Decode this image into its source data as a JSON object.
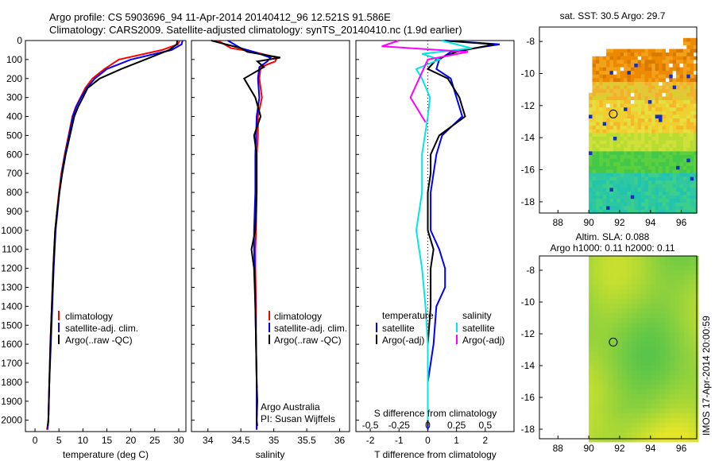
{
  "title": {
    "line1": "Argo profile: CS 5903696_94 11-Apr-2014 20140412_96 12.521S 91.586E",
    "line2": "Climatology: CARS2009. Satellite-adjusted climatology: synTS_20140410.nc (1.9d earlier)"
  },
  "colors": {
    "clim": "#ff0000",
    "sat": "#0000ff",
    "argo": "#000000",
    "sal_sat": "#00e5e5",
    "sal_argo": "#ff00ff"
  },
  "depth_ticks": [
    0,
    100,
    200,
    300,
    400,
    500,
    600,
    700,
    800,
    900,
    1000,
    1100,
    1200,
    1300,
    1400,
    1500,
    1600,
    1700,
    1800,
    1900,
    2000
  ],
  "panel_temp": {
    "xlabel": "temperature (deg C)",
    "xticks": [
      0,
      5,
      10,
      15,
      20,
      25,
      30
    ],
    "xlim": [
      -2,
      31.5
    ],
    "legend": [
      "climatology",
      "satellite-adj. clim.",
      "Argo(..raw -QC)"
    ]
  },
  "panel_sal": {
    "xlabel": "salinity",
    "xticks": [
      "34",
      "34.5",
      "35",
      "35.5",
      "36"
    ],
    "xlim": [
      33.75,
      36.15
    ],
    "legend": [
      "climatology",
      "satellite-adj. clim.",
      "Argo(..raw -QC)"
    ],
    "note1": "Argo Australia",
    "note2": "PI: Susan Wijffels"
  },
  "panel_diff": {
    "xlabel": "T difference from climatology",
    "xticks": [
      "-2",
      "-1",
      "0",
      "1",
      "2"
    ],
    "xlim": [
      -2.5,
      3.0
    ],
    "top_label": "S difference from climatology",
    "sticks": [
      "-0.5",
      "-0.25",
      "0",
      "0.25",
      "0.5"
    ],
    "legend_temp_title": "temperature",
    "legend_sal_title": "salinity",
    "legend_temp": [
      "satellite",
      "Argo(-adj)"
    ],
    "legend_sal": [
      "satellite",
      "Argo(-adj)"
    ]
  },
  "map_sst": {
    "title": "sat. SST: 30.5  Argo: 29.7",
    "xticks": [
      "88",
      "90",
      "92",
      "94",
      "96"
    ],
    "yticks": [
      "-8",
      "-10",
      "-12",
      "-14",
      "-16",
      "-18"
    ]
  },
  "map_sla": {
    "title1": "Altim. SLA: 0.088",
    "title2": "Argo h1000: 0.11  h2000: 0.11",
    "xticks": [
      "88",
      "90",
      "92",
      "94",
      "96"
    ],
    "yticks": [
      "-8",
      "-10",
      "-12",
      "-14",
      "-16",
      "-18"
    ]
  },
  "argo_position": {
    "lon": 91.586,
    "lat": -12.521
  },
  "side_label": "IMOS 17-Apr-2014 20:00:59",
  "chart_data": [
    {
      "type": "line",
      "ylabel": "",
      "xlabel": "temperature (deg C)",
      "ylim": [
        2060,
        0
      ],
      "series": [
        {
          "name": "climatology",
          "x": [
            30.2,
            29.8,
            26.5,
            17.5,
            14.5,
            12.0,
            10.5,
            9.5,
            8.5,
            7.8,
            7.0,
            6.2,
            5.5,
            5.0,
            4.6,
            4.2,
            3.8,
            3.5,
            3.2,
            3.0,
            2.8,
            2.5
          ],
          "y": [
            0,
            20,
            50,
            100,
            150,
            200,
            250,
            300,
            350,
            400,
            500,
            600,
            700,
            800,
            900,
            1000,
            1200,
            1400,
            1600,
            1800,
            2000,
            2050
          ]
        },
        {
          "name": "satellite-adj. clim.",
          "x": [
            30.8,
            30.6,
            28.5,
            20.0,
            15.0,
            12.5,
            10.8,
            9.6,
            8.6,
            7.9,
            7.1,
            6.3,
            5.6,
            5.1,
            4.7,
            4.3,
            3.9,
            3.6,
            3.3,
            3.0,
            2.8,
            2.6
          ],
          "y": [
            0,
            20,
            50,
            100,
            150,
            200,
            250,
            300,
            350,
            400,
            500,
            600,
            700,
            800,
            900,
            1000,
            1200,
            1400,
            1600,
            1800,
            2000,
            2050
          ]
        },
        {
          "name": "Argo(..raw -QC)",
          "x": [
            29.7,
            29.6,
            28.0,
            23.0,
            18.0,
            13.5,
            11.0,
            10.0,
            9.0,
            8.2,
            7.3,
            6.4,
            5.7,
            5.1,
            4.6,
            4.2,
            3.8,
            3.5,
            3.2,
            3.0,
            2.8,
            2.7
          ],
          "y": [
            0,
            20,
            50,
            100,
            150,
            200,
            250,
            300,
            350,
            400,
            500,
            600,
            700,
            800,
            900,
            1000,
            1200,
            1400,
            1600,
            1800,
            2000,
            2030
          ]
        }
      ]
    },
    {
      "type": "line",
      "xlabel": "salinity",
      "ylim": [
        2060,
        0
      ],
      "series": [
        {
          "name": "climatology",
          "x": [
            34.15,
            34.35,
            34.7,
            35.05,
            35.02,
            34.8,
            34.78,
            34.82,
            34.76,
            34.76,
            34.74,
            34.74,
            34.73,
            34.72,
            34.72,
            34.73,
            34.73,
            34.74,
            34.74,
            34.74,
            34.74
          ],
          "y": [
            0,
            40,
            60,
            90,
            110,
            140,
            200,
            300,
            400,
            500,
            600,
            800,
            1000,
            1100,
            1200,
            1400,
            1600,
            1800,
            1900,
            2000,
            2050
          ]
        },
        {
          "name": "satellite-adj. clim.",
          "x": [
            34.3,
            34.5,
            34.7,
            34.95,
            34.9,
            34.78,
            34.76,
            34.78,
            34.74,
            34.73,
            34.72,
            34.72,
            34.7,
            34.7,
            34.71,
            34.72,
            34.73,
            34.74,
            34.74,
            34.74,
            34.74
          ],
          "y": [
            0,
            40,
            60,
            90,
            110,
            140,
            200,
            300,
            400,
            500,
            600,
            800,
            1000,
            1100,
            1200,
            1400,
            1600,
            1800,
            1900,
            2000,
            2050
          ]
        },
        {
          "name": "Argo(..raw -QC)",
          "x": [
            34.05,
            34.5,
            34.6,
            35.1,
            34.75,
            34.85,
            34.55,
            34.72,
            34.8,
            34.7,
            34.74,
            34.74,
            34.72,
            34.66,
            34.7,
            34.72,
            34.73,
            34.74,
            34.75,
            34.74,
            34.75
          ],
          "y": [
            0,
            40,
            60,
            90,
            110,
            140,
            200,
            300,
            400,
            500,
            600,
            800,
            1000,
            1100,
            1200,
            1400,
            1600,
            1800,
            1900,
            2000,
            2030
          ]
        }
      ]
    },
    {
      "type": "line",
      "xlabel": "T difference from climatology",
      "x2label": "S difference from climatology",
      "ylim": [
        2060,
        0
      ],
      "series": [
        {
          "name": "temperature satellite",
          "x": [
            0.6,
            2.5,
            0.8,
            0.4,
            0.3,
            0.8,
            1.0,
            1.2,
            0.5,
            0.3,
            0.2,
            0.1,
            0.1,
            0.4,
            0.6,
            0.6,
            0.3,
            0.2,
            0.0,
            0.0,
            0.0
          ],
          "y": [
            0,
            20,
            60,
            100,
            150,
            200,
            300,
            400,
            500,
            600,
            700,
            800,
            1000,
            1100,
            1200,
            1300,
            1400,
            1600,
            1800,
            2000,
            2050
          ]
        },
        {
          "name": "temperature Argo(-adj)",
          "x": [
            0.5,
            2.3,
            1.0,
            0.3,
            0.0,
            0.7,
            1.1,
            1.3,
            0.4,
            0.1,
            0.1,
            0.0,
            0.0,
            0.2,
            0.1,
            0.1,
            0.0,
            0.0,
            0.0,
            0.0
          ],
          "y": [
            0,
            20,
            60,
            100,
            150,
            200,
            300,
            400,
            500,
            600,
            700,
            800,
            1000,
            1100,
            1200,
            1400,
            1600,
            1800,
            1900,
            2030
          ]
        },
        {
          "name": "salinity satellite",
          "x": [
            0.12,
            0.38,
            -0.05,
            0.1,
            -0.1,
            -0.05,
            0.02,
            0.0,
            -0.05,
            -0.05,
            -0.1,
            -0.05,
            -0.02,
            0.0,
            0.0,
            0.0
          ],
          "y": [
            0,
            40,
            70,
            100,
            150,
            200,
            300,
            400,
            600,
            800,
            1000,
            1200,
            1400,
            1600,
            1800,
            2000
          ]
        },
        {
          "name": "salinity Argo(-adj)",
          "x": [
            -0.25,
            -0.4,
            0.35,
            0.0,
            -0.15,
            -0.05,
            -0.02
          ],
          "y": [
            0,
            30,
            60,
            100,
            300,
            400,
            430
          ]
        }
      ]
    }
  ]
}
